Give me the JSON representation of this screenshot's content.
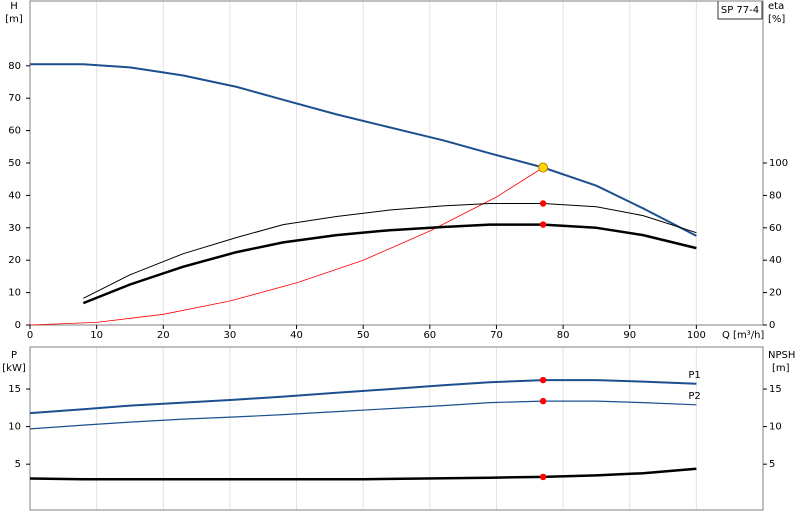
{
  "chart_data": [
    {
      "type": "line",
      "title": "SP 77-4",
      "ylabel": "H",
      "ylabel_unit": "[m]",
      "y2label": "eta",
      "y2label_unit": "[%]",
      "xlabel": "Q [m³/h]",
      "xlim": [
        0,
        110
      ],
      "xticks": [
        0,
        10,
        20,
        30,
        40,
        50,
        60,
        70,
        80,
        90,
        100
      ],
      "ylim": [
        0,
        100
      ],
      "yticks": [
        0,
        10,
        20,
        30,
        40,
        50,
        60,
        70,
        80
      ],
      "y2lim": [
        0,
        200
      ],
      "y2ticks": [
        0,
        20,
        40,
        60,
        80,
        100
      ],
      "grid": "x",
      "series": [
        {
          "color": "#1c4f8f",
          "linewidth": 2,
          "x": [
            0,
            8,
            15,
            23,
            31,
            38,
            46,
            54,
            62,
            69,
            77,
            85,
            92,
            100
          ],
          "values": [
            80.5,
            80.5,
            79.5,
            77,
            73.5,
            69.5,
            65,
            61,
            57,
            53,
            48.6,
            43,
            36,
            27.5
          ]
        },
        {
          "color": "#ff0000",
          "linewidth": 0.8,
          "x": [
            0,
            10,
            20,
            30,
            40,
            50,
            60,
            70,
            77
          ],
          "values": [
            0,
            0.8,
            3.3,
            7.4,
            13,
            20,
            29,
            39.5,
            48.6
          ]
        },
        {
          "color": "#000000",
          "linewidth": 1,
          "axis": "y2",
          "x": [
            8,
            15,
            23,
            31,
            38,
            46,
            54,
            62,
            69,
            77,
            85,
            92,
            100
          ],
          "values": [
            16.5,
            31,
            44,
            54,
            62,
            67,
            71,
            73.5,
            75,
            75,
            73,
            67.5,
            57
          ]
        },
        {
          "color": "#000000",
          "linewidth": 2.5,
          "axis": "y2",
          "x": [
            8,
            15,
            23,
            31,
            38,
            46,
            54,
            62,
            69,
            77,
            85,
            92,
            100
          ],
          "values": [
            13.5,
            25,
            36,
            45,
            51,
            55.5,
            58.5,
            60.5,
            62,
            62,
            60,
            55.5,
            47.5
          ]
        }
      ],
      "markers": [
        {
          "x": 77,
          "y": 48.6,
          "color": "#ffd700"
        },
        {
          "x": 77,
          "y": 75,
          "color": "#ff0000",
          "axis": "y2"
        },
        {
          "x": 77,
          "y": 62,
          "color": "#ff0000",
          "axis": "y2"
        }
      ]
    },
    {
      "type": "line",
      "ylabel": "P",
      "ylabel_unit": "[kW]",
      "y2label": "NPSH",
      "y2label_unit": "[m]",
      "xlim": [
        0,
        110
      ],
      "ylim": [
        -1.1,
        20.6
      ],
      "yticks": [
        5,
        10,
        15
      ],
      "y2lim": [
        -1.1,
        20.6
      ],
      "y2ticks": [
        5,
        10,
        15
      ],
      "grid": "x",
      "series": [
        {
          "name": "P1",
          "color": "#1c4f8f",
          "linewidth": 2,
          "x": [
            0,
            8,
            15,
            23,
            31,
            38,
            46,
            54,
            62,
            69,
            77,
            85,
            92,
            100
          ],
          "values": [
            11.8,
            12.3,
            12.8,
            13.2,
            13.6,
            14.0,
            14.5,
            15.0,
            15.5,
            15.9,
            16.2,
            16.2,
            16.0,
            15.7
          ]
        },
        {
          "name": "P2",
          "color": "#1c4f8f",
          "linewidth": 1.2,
          "x": [
            0,
            8,
            15,
            23,
            31,
            38,
            46,
            54,
            62,
            69,
            77,
            85,
            92,
            100
          ],
          "values": [
            9.7,
            10.2,
            10.6,
            11.0,
            11.3,
            11.6,
            12.0,
            12.4,
            12.8,
            13.2,
            13.4,
            13.4,
            13.2,
            12.9
          ]
        },
        {
          "color": "#000000",
          "linewidth": 2.5,
          "axis": "y2",
          "x": [
            0,
            8,
            30,
            50,
            69,
            77,
            85,
            92,
            100
          ],
          "values": [
            3.1,
            3.0,
            3.0,
            3.0,
            3.2,
            3.3,
            3.5,
            3.8,
            4.4
          ]
        }
      ],
      "markers": [
        {
          "x": 77,
          "y": 16.2,
          "color": "#ff0000"
        },
        {
          "x": 77,
          "y": 13.4,
          "color": "#ff0000"
        },
        {
          "x": 77,
          "y": 3.3,
          "color": "#ff0000",
          "axis": "y2"
        }
      ]
    }
  ]
}
